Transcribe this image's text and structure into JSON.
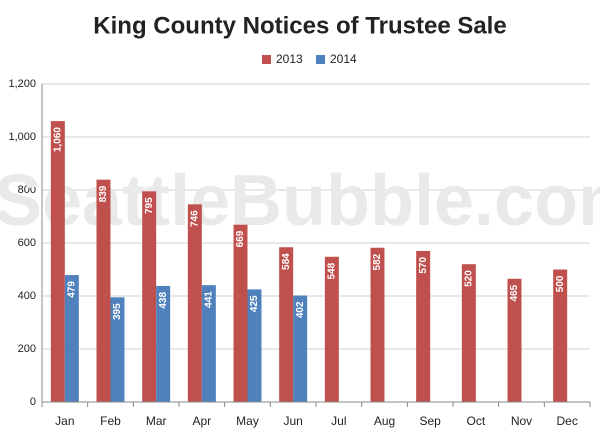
{
  "chart_data": {
    "type": "bar",
    "title": "King County Notices of Trustee Sale",
    "watermark": "SeattleBubble.com",
    "categories": [
      "Jan",
      "Feb",
      "Mar",
      "Apr",
      "May",
      "Jun",
      "Jul",
      "Aug",
      "Sep",
      "Oct",
      "Nov",
      "Dec"
    ],
    "series": [
      {
        "name": "2013",
        "color": "#c0504d",
        "values": [
          1060,
          839,
          795,
          746,
          669,
          584,
          548,
          582,
          570,
          520,
          465,
          500
        ],
        "value_labels": [
          "1,060",
          "839",
          "795",
          "746",
          "669",
          "584",
          "548",
          "582",
          "570",
          "520",
          "465",
          "500"
        ]
      },
      {
        "name": "2014",
        "color": "#4f81bd",
        "values": [
          479,
          395,
          438,
          441,
          425,
          402,
          null,
          null,
          null,
          null,
          null,
          null
        ]
      }
    ],
    "ylim": [
      0,
      1200
    ],
    "yticks": [
      0,
      200,
      400,
      600,
      800,
      {
        "value": 1000,
        "label": "1,000"
      },
      {
        "value": 1200,
        "label": "1,200"
      }
    ],
    "grid": true,
    "legend": "top"
  }
}
